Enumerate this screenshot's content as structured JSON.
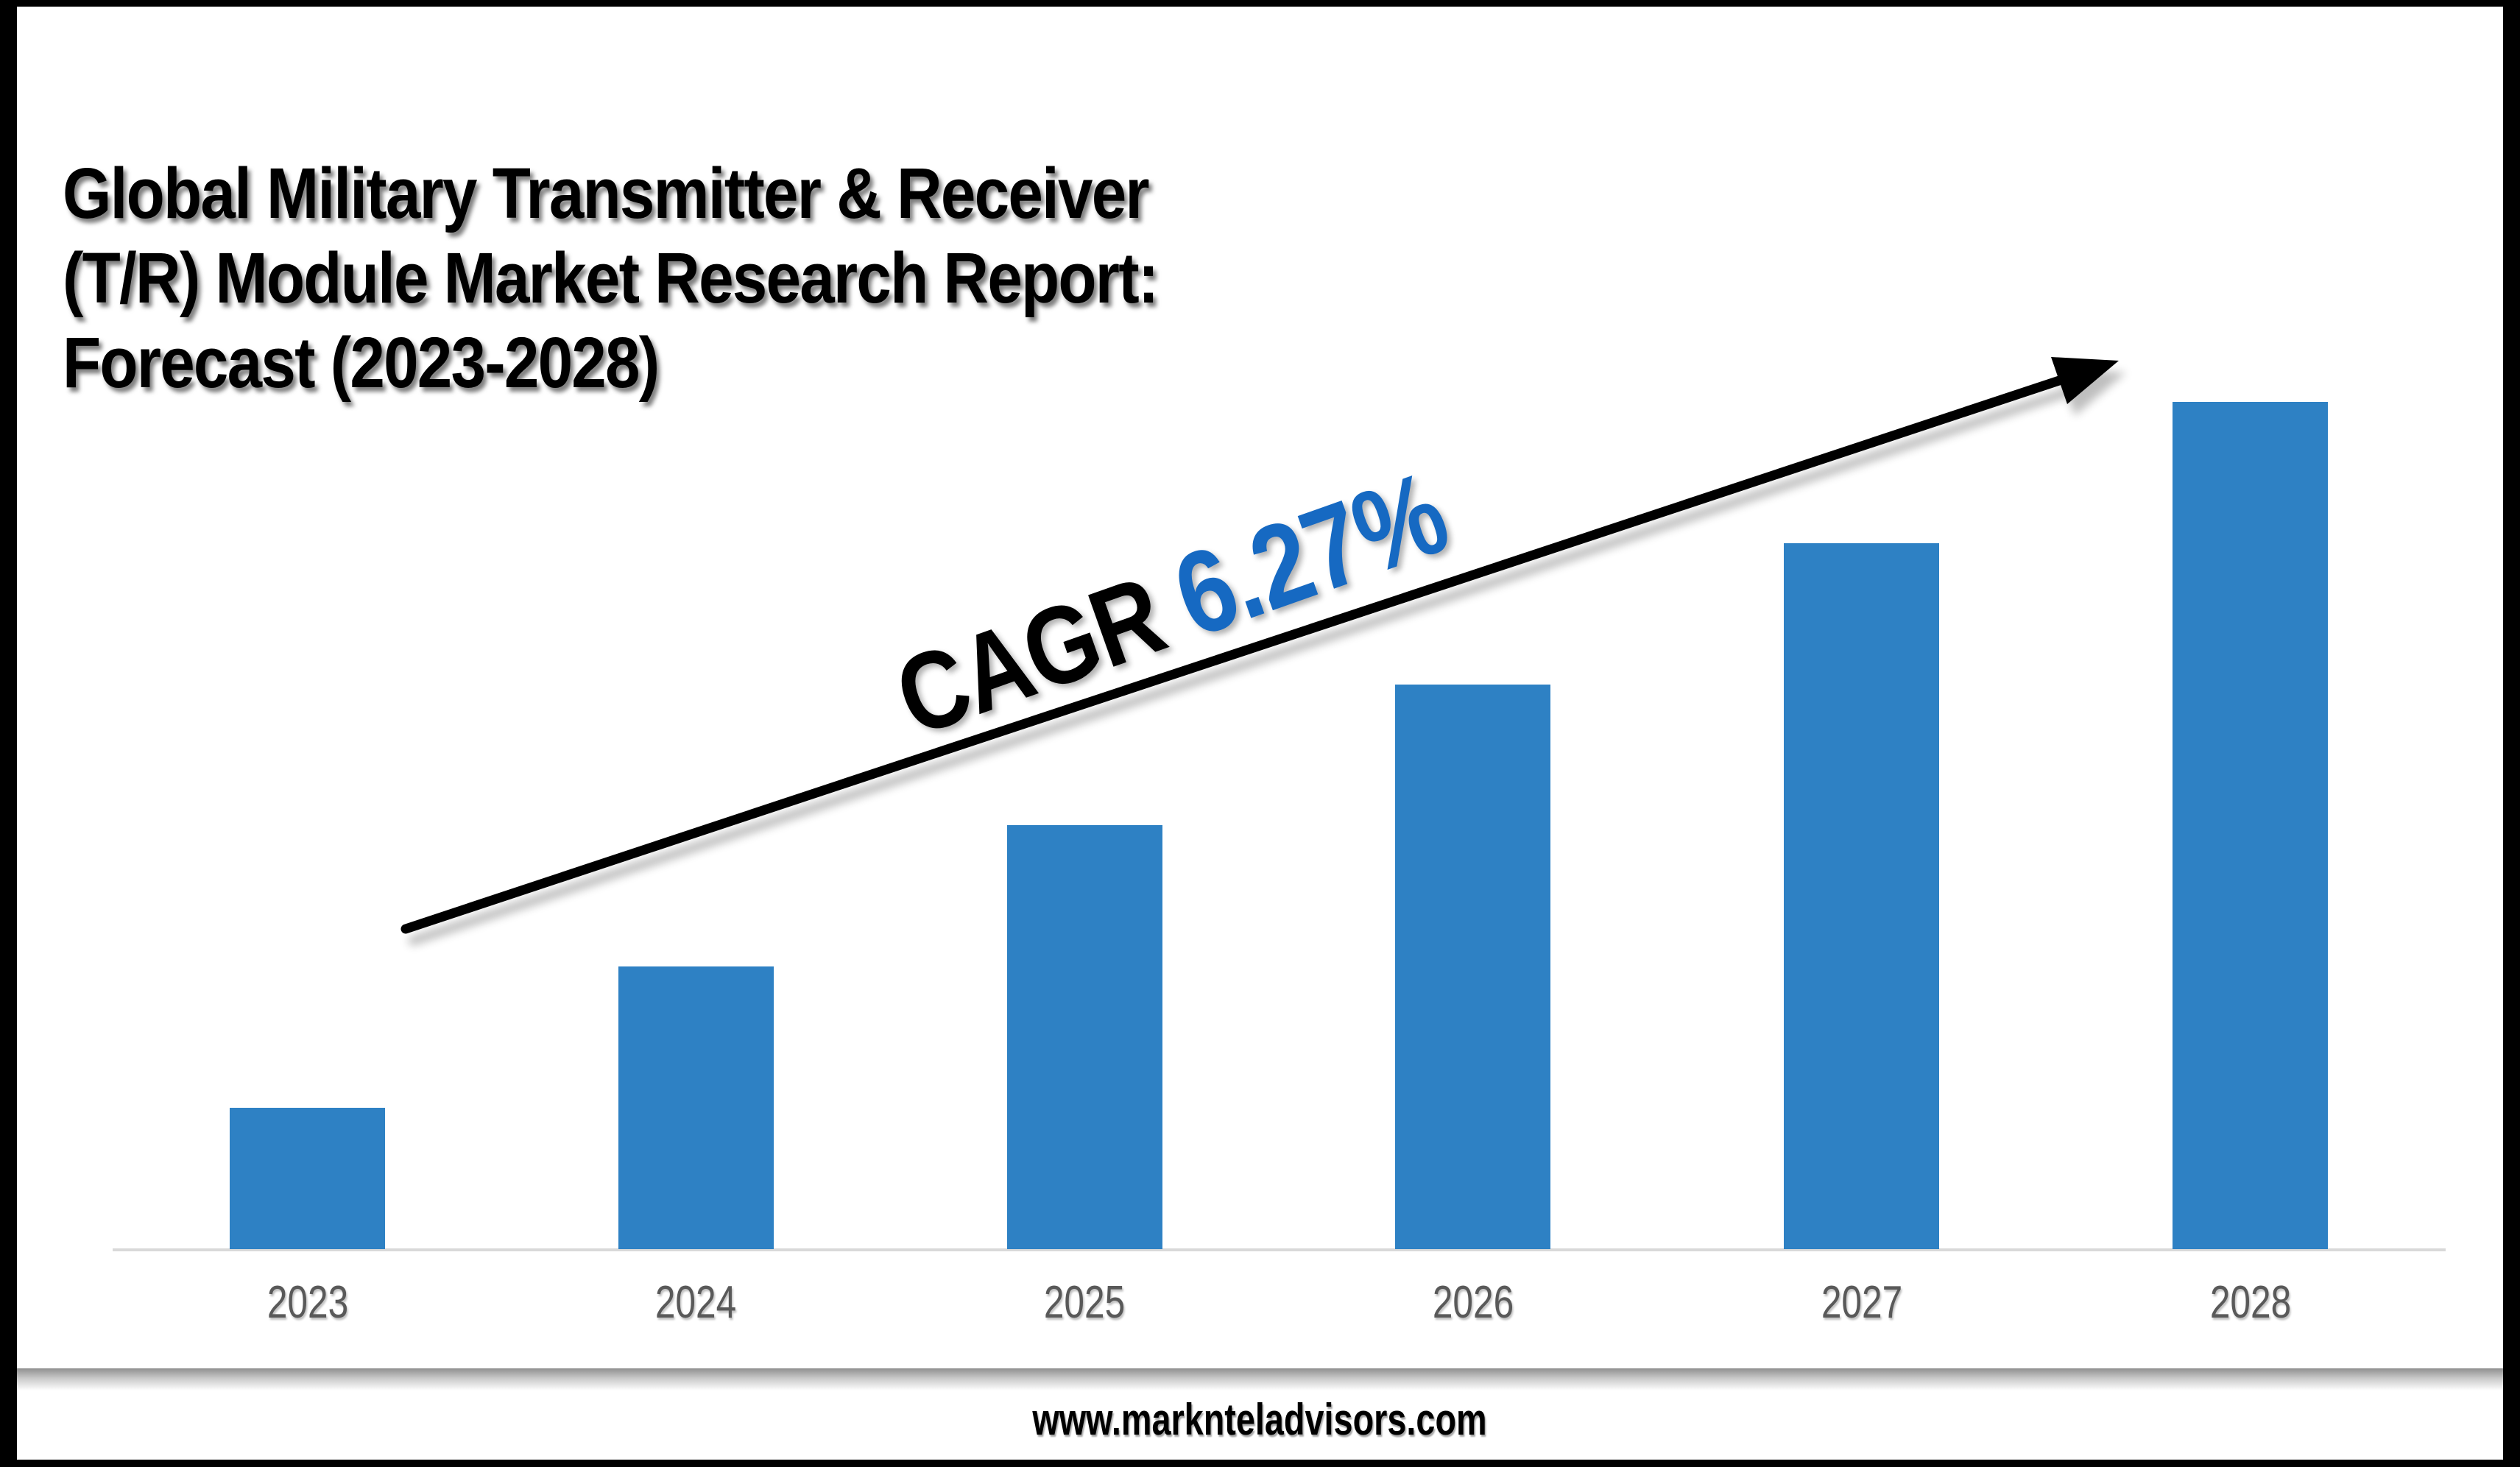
{
  "title": {
    "full": "Global Military Transmitter & Receiver (T/R) Module Market Research Report: Forecast (2023-2028)",
    "lines": [
      "Global Military Transmitter & Receiver",
      "(T/R) Module Market Research Report:",
      "Forecast (2023-2028)"
    ]
  },
  "annotation": {
    "cagr_label": "CAGR",
    "cagr_value": "6.27%"
  },
  "footer": {
    "website": "www.marknteladvisors.com"
  },
  "colors": {
    "bar": "#2E81C4",
    "cagr_value": "#1669C2",
    "axis_line": "#D9D9D9",
    "year_label": "#595959",
    "frame": "#000000"
  },
  "chart_data": {
    "type": "bar",
    "title": "Global Military Transmitter & Receiver (T/R) Module Market Research Report: Forecast (2023-2028)",
    "categories": [
      "2023",
      "2024",
      "2025",
      "2026",
      "2027",
      "2028"
    ],
    "values": [
      1,
      2,
      3,
      4,
      5,
      6
    ],
    "values_note": "No value axis is shown; bar heights grow linearly, values are relative units",
    "xlabel": "",
    "ylabel": "",
    "ylim": [
      0,
      6
    ],
    "grid": false,
    "legend": false,
    "bar_color": "#2E81C4",
    "annotations": [
      "CAGR 6.27%",
      "upward trend arrow across bars"
    ]
  }
}
